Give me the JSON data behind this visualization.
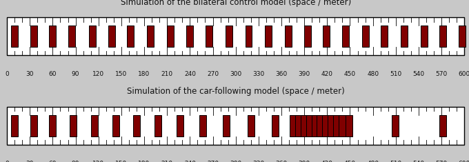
{
  "title1": "Simulation of the bilateral control model (space / meter)",
  "title2": "Simulation of the car-following model (space / meter)",
  "xmin": 0,
  "xmax": 600,
  "xticks": [
    0,
    30,
    60,
    90,
    120,
    150,
    180,
    210,
    240,
    270,
    300,
    330,
    360,
    390,
    420,
    450,
    480,
    510,
    540,
    570,
    600
  ],
  "background_color": "#c8c8c8",
  "road_color": "#ffffff",
  "road_border_color": "#000000",
  "car_fill": "#800000",
  "car_edge": "#000000",
  "title_fontsize": 8.5,
  "tick_fontsize": 6.5,
  "cars_uniform": [
    10,
    35,
    60,
    85,
    112,
    137,
    162,
    188,
    214,
    240,
    265,
    291,
    317,
    343,
    369,
    394,
    419,
    444,
    470,
    495,
    521,
    547,
    572,
    597
  ],
  "cars_following": [
    10,
    35,
    60,
    87,
    115,
    143,
    170,
    198,
    227,
    257,
    288,
    320,
    352,
    375,
    383,
    390,
    397,
    404,
    411,
    418,
    425,
    432,
    440,
    449,
    509,
    572
  ]
}
